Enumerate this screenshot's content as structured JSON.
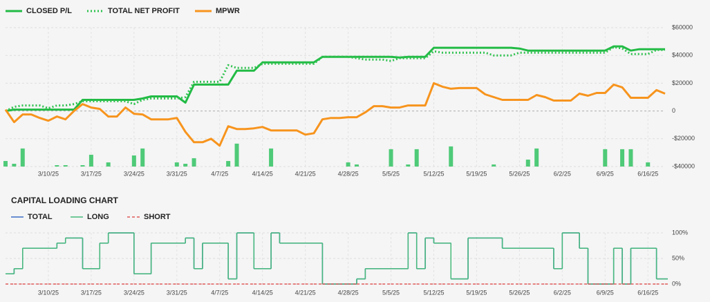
{
  "chart_data": [
    {
      "type": "line",
      "categories": [
        null,
        null,
        null,
        null,
        null,
        "3/10/25",
        null,
        null,
        null,
        null,
        "3/17/25",
        null,
        null,
        null,
        null,
        "3/24/25",
        null,
        null,
        null,
        null,
        "3/31/25",
        null,
        null,
        null,
        null,
        "4/7/25",
        null,
        null,
        null,
        null,
        "4/14/25",
        null,
        null,
        null,
        null,
        "4/21/25",
        null,
        null,
        null,
        null,
        "4/28/25",
        null,
        null,
        null,
        null,
        "5/5/25",
        null,
        null,
        null,
        null,
        "5/12/25",
        null,
        null,
        null,
        null,
        "5/19/25",
        null,
        null,
        null,
        null,
        "5/26/25",
        null,
        null,
        null,
        null,
        "6/2/25",
        null,
        null,
        null,
        null,
        "6/9/25",
        null,
        null,
        null,
        null,
        "6/16/25",
        null,
        null
      ],
      "ylim": [
        -40000,
        60000
      ],
      "yticks": [
        {
          "value": -40000,
          "label": "-$40000"
        },
        {
          "value": -20000,
          "label": "-$20000"
        },
        0,
        {
          "value": 20000,
          "label": "$20000"
        },
        {
          "value": 40000,
          "label": "$40000"
        },
        {
          "value": 60000,
          "label": "$60000"
        }
      ],
      "grid": true,
      "series": [
        {
          "name": "CLOSED P/L",
          "color": "#22bb45",
          "style": "solid",
          "values": [
            0,
            1000,
            1000,
            1000,
            1000,
            1000,
            1000,
            1000,
            1000,
            8000,
            8000,
            8000,
            8000,
            8000,
            8000,
            8000,
            9000,
            10500,
            10500,
            10500,
            10500,
            6000,
            19000,
            19000,
            19000,
            19000,
            19000,
            29000,
            29000,
            29000,
            35000,
            35000,
            35000,
            35000,
            35000,
            35000,
            35000,
            39000,
            39000,
            39000,
            39000,
            39000,
            39000,
            39000,
            39000,
            39000,
            38500,
            39000,
            39000,
            39000,
            45500,
            45500,
            45500,
            45500,
            45500,
            45500,
            45500,
            45500,
            45500,
            45500,
            45000,
            43500,
            43500,
            43500,
            43500,
            43500,
            43500,
            43500,
            43500,
            43500,
            43500,
            46500,
            46500,
            43500,
            44500,
            44500,
            44500,
            44500
          ]
        },
        {
          "name": "TOTAL NET PROFIT",
          "color": "#2fc24f",
          "style": "dotted",
          "values": [
            0,
            3000,
            4000,
            4000,
            4000,
            2000,
            4000,
            4000,
            5000,
            7000,
            7000,
            7000,
            7000,
            7000,
            7000,
            5000,
            8000,
            9000,
            9000,
            9000,
            9000,
            10000,
            21000,
            21000,
            21000,
            21000,
            33000,
            31000,
            31000,
            31000,
            34000,
            34000,
            34000,
            34000,
            34000,
            34000,
            34000,
            39000,
            39000,
            39000,
            39000,
            38000,
            37000,
            37000,
            37000,
            36000,
            38000,
            38000,
            38000,
            38000,
            43000,
            42000,
            42000,
            42000,
            42000,
            42000,
            42000,
            40000,
            40000,
            40000,
            42000,
            42000,
            42000,
            42000,
            42000,
            42000,
            42000,
            42000,
            42000,
            42000,
            42000,
            46000,
            45000,
            41000,
            41000,
            41000,
            44000,
            44000
          ]
        },
        {
          "name": "MPWR",
          "color": "#f7941d",
          "style": "solid",
          "values": [
            1000,
            -8000,
            -2500,
            -2500,
            -5000,
            -7000,
            -4000,
            -6000,
            0,
            5000,
            2500,
            1500,
            -4000,
            -4000,
            2500,
            -2000,
            -2500,
            -6000,
            -6000,
            -6000,
            -5000,
            -15000,
            -22500,
            -22500,
            -20000,
            -25000,
            -11000,
            -13000,
            -13000,
            -12500,
            -11500,
            -14000,
            -14000,
            -14000,
            -14000,
            -17000,
            -16000,
            -6000,
            -5000,
            -5000,
            -4500,
            -4500,
            -1000,
            3500,
            3500,
            2500,
            2500,
            4000,
            4000,
            4000,
            20000,
            17500,
            16000,
            16500,
            16500,
            16500,
            12000,
            10000,
            8000,
            8000,
            8000,
            8000,
            11500,
            10000,
            7500,
            7500,
            7500,
            12500,
            11000,
            13000,
            13000,
            19000,
            17000,
            9500,
            9500,
            9500,
            15000,
            12500
          ]
        }
      ],
      "bars": {
        "color": "#4fca78",
        "values": [
          -36000,
          -38000,
          -27000,
          null,
          null,
          null,
          -39000,
          -39000,
          null,
          -39000,
          -31500,
          null,
          -37000,
          null,
          null,
          -32000,
          -27000,
          null,
          null,
          null,
          -37000,
          -38000,
          -34000,
          null,
          null,
          null,
          -36000,
          -23500,
          null,
          null,
          null,
          -27000,
          null,
          null,
          null,
          null,
          null,
          null,
          null,
          null,
          -37000,
          -38500,
          null,
          null,
          null,
          -27500,
          null,
          -38500,
          -27500,
          null,
          null,
          null,
          -25500,
          null,
          null,
          null,
          null,
          -38500,
          null,
          null,
          null,
          -35000,
          -27000,
          null,
          null,
          null,
          null,
          null,
          null,
          null,
          -27500,
          null,
          -27500,
          -27500,
          null,
          -37000,
          null,
          null
        ]
      }
    },
    {
      "type": "step",
      "title": "CAPITAL LOADING CHART",
      "categories": [
        null,
        null,
        null,
        null,
        null,
        "3/10/25",
        null,
        null,
        null,
        null,
        "3/17/25",
        null,
        null,
        null,
        null,
        "3/24/25",
        null,
        null,
        null,
        null,
        "3/31/25",
        null,
        null,
        null,
        null,
        "4/7/25",
        null,
        null,
        null,
        null,
        "4/14/25",
        null,
        null,
        null,
        null,
        "4/21/25",
        null,
        null,
        null,
        null,
        "4/28/25",
        null,
        null,
        null,
        null,
        "5/5/25",
        null,
        null,
        null,
        null,
        "5/12/25",
        null,
        null,
        null,
        null,
        "5/19/25",
        null,
        null,
        null,
        null,
        "5/26/25",
        null,
        null,
        null,
        null,
        "6/2/25",
        null,
        null,
        null,
        null,
        "6/9/25",
        null,
        null,
        null,
        null,
        "6/16/25",
        null,
        null
      ],
      "ylim": [
        0,
        100
      ],
      "yticks": [
        {
          "value": 0,
          "label": "0%"
        },
        {
          "value": 50,
          "label": "50%"
        },
        {
          "value": 100,
          "label": "100%"
        }
      ],
      "grid": true,
      "series": [
        {
          "name": "TOTAL",
          "color": "#3b6bc5",
          "style": "solid",
          "values": [
            20,
            30,
            70,
            70,
            70,
            70,
            80,
            90,
            90,
            30,
            30,
            80,
            100,
            100,
            100,
            20,
            20,
            80,
            80,
            80,
            80,
            90,
            30,
            80,
            80,
            80,
            10,
            100,
            100,
            30,
            30,
            100,
            80,
            80,
            80,
            80,
            80,
            0,
            0,
            0,
            0,
            10,
            30,
            30,
            30,
            30,
            30,
            100,
            30,
            90,
            80,
            80,
            10,
            10,
            90,
            90,
            90,
            90,
            70,
            70,
            70,
            70,
            70,
            70,
            30,
            100,
            100,
            70,
            0,
            0,
            0,
            70,
            0,
            70,
            70,
            70,
            10,
            10
          ]
        },
        {
          "name": "LONG",
          "color": "#45b97a",
          "style": "solid",
          "values": [
            20,
            30,
            70,
            70,
            70,
            70,
            80,
            90,
            90,
            30,
            30,
            80,
            100,
            100,
            100,
            20,
            20,
            80,
            80,
            80,
            80,
            90,
            30,
            80,
            80,
            80,
            10,
            100,
            100,
            30,
            30,
            100,
            80,
            80,
            80,
            80,
            80,
            0,
            0,
            0,
            0,
            10,
            30,
            30,
            30,
            30,
            30,
            100,
            30,
            90,
            80,
            80,
            10,
            10,
            90,
            90,
            90,
            90,
            70,
            70,
            70,
            70,
            70,
            70,
            30,
            100,
            100,
            70,
            0,
            0,
            0,
            70,
            0,
            70,
            70,
            70,
            10,
            10
          ]
        },
        {
          "name": "SHORT",
          "color": "#e05a5a",
          "style": "dashed",
          "values": [
            0,
            0,
            0,
            0,
            0,
            0,
            0,
            0,
            0,
            0,
            0,
            0,
            0,
            0,
            0,
            0,
            0,
            0,
            0,
            0,
            0,
            0,
            0,
            0,
            0,
            0,
            0,
            0,
            0,
            0,
            0,
            0,
            0,
            0,
            0,
            0,
            0,
            0,
            0,
            0,
            0,
            0,
            0,
            0,
            0,
            0,
            0,
            0,
            0,
            0,
            0,
            0,
            0,
            0,
            0,
            0,
            0,
            0,
            0,
            0,
            0,
            0,
            0,
            0,
            0,
            0,
            0,
            0,
            0,
            0,
            0,
            0,
            0,
            0,
            0,
            0,
            0,
            0
          ]
        }
      ]
    }
  ]
}
